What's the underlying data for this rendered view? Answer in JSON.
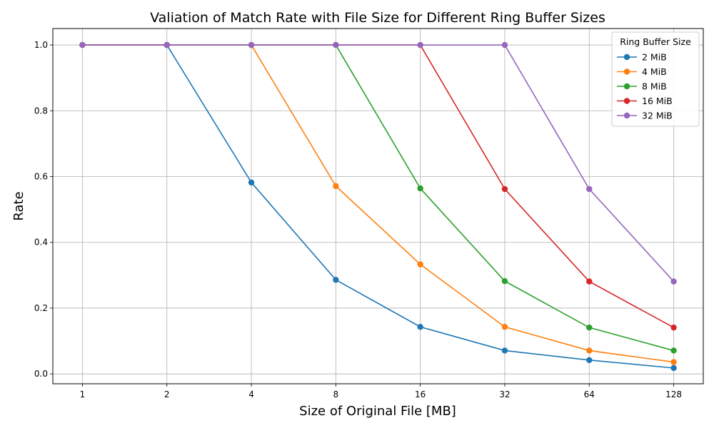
{
  "chart_data": {
    "type": "line",
    "title": "Valiation of Match Rate with File Size for Different Ring Buffer Sizes",
    "xlabel": "Size of Original File [MB]",
    "ylabel": "Rate",
    "x": [
      1,
      2,
      4,
      8,
      16,
      32,
      64,
      128
    ],
    "x_tick_labels": [
      "1",
      "2",
      "4",
      "8",
      "16",
      "32",
      "64",
      "128"
    ],
    "x_scale": "log2",
    "ylim": [
      -0.03,
      1.05
    ],
    "y_ticks": [
      0.0,
      0.2,
      0.4,
      0.6,
      0.8,
      1.0
    ],
    "y_tick_labels": [
      "0.0",
      "0.2",
      "0.4",
      "0.6",
      "0.8",
      "1.0"
    ],
    "grid": true,
    "legend": {
      "title": "Ring Buffer Size",
      "placement": "top-right"
    },
    "series": [
      {
        "name": "2 MiB",
        "color": "#1f77b4",
        "values": [
          1.0,
          1.0,
          0.582,
          0.286,
          0.143,
          0.071,
          0.042,
          0.018
        ]
      },
      {
        "name": "4 MiB",
        "color": "#ff7f0e",
        "values": [
          1.0,
          1.0,
          1.0,
          0.571,
          0.333,
          0.143,
          0.071,
          0.036
        ]
      },
      {
        "name": "8 MiB",
        "color": "#2ca02c",
        "values": [
          1.0,
          1.0,
          1.0,
          1.0,
          0.564,
          0.282,
          0.141,
          0.071
        ]
      },
      {
        "name": "16 MiB",
        "color": "#d62728",
        "values": [
          1.0,
          1.0,
          1.0,
          1.0,
          1.0,
          0.562,
          0.281,
          0.141
        ]
      },
      {
        "name": "32 MiB",
        "color": "#9467bd",
        "values": [
          1.0,
          1.0,
          1.0,
          1.0,
          1.0,
          1.0,
          0.562,
          0.281
        ]
      }
    ]
  }
}
